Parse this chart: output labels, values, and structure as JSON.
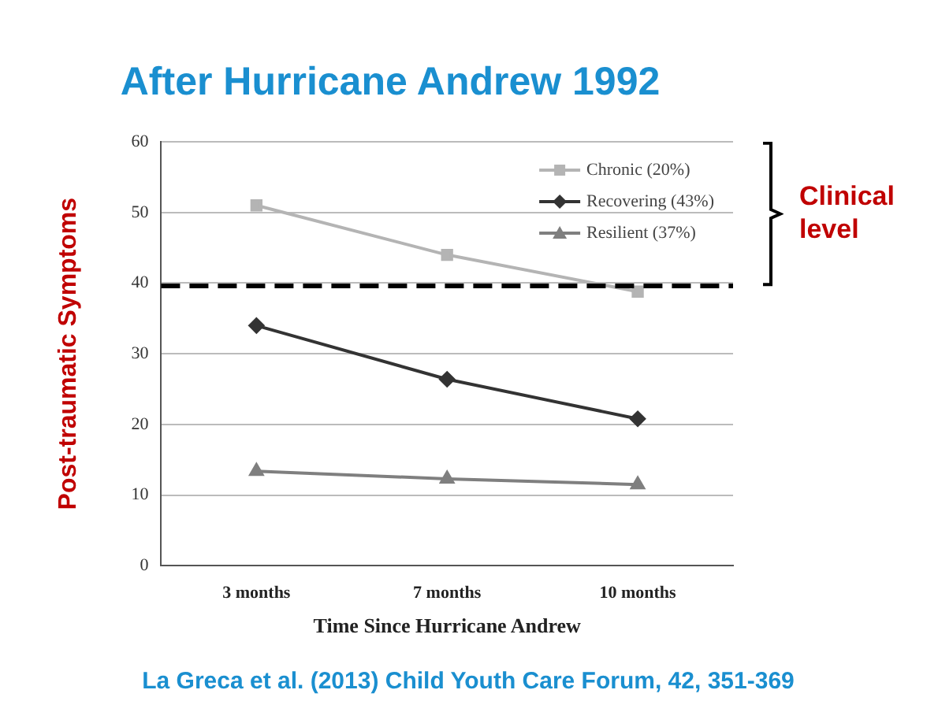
{
  "chart_data": {
    "type": "line",
    "title": "After Hurricane Andrew 1992",
    "xlabel": "Time Since Hurricane Andrew",
    "ylabel": "Post-traumatic Symptoms",
    "categories": [
      "3 months",
      "7 months",
      "10 months"
    ],
    "series": [
      {
        "name": "Chronic (20%)",
        "color": "#b4b4b4",
        "marker": "square",
        "values": [
          51,
          44,
          38.8
        ]
      },
      {
        "name": "Recovering (43%)",
        "color": "#333333",
        "marker": "diamond",
        "values": [
          34,
          26.4,
          20.8
        ]
      },
      {
        "name": "Resilient (37%)",
        "color": "#7f7f7f",
        "marker": "triangle",
        "values": [
          13.4,
          12.3,
          11.5
        ]
      }
    ],
    "ylim": [
      0,
      60
    ],
    "yticks": [
      0,
      10,
      20,
      30,
      40,
      50,
      60
    ],
    "grid": "y",
    "legend": "top right",
    "ref_lines": [
      {
        "axis": "y",
        "value": 39.6,
        "label": "Clinical level",
        "color": "#000000",
        "line_style": "dashed"
      }
    ],
    "annotations": [
      "La Greca et al. (2013) Child Youth Care Forum, 42, 351-369"
    ]
  }
}
